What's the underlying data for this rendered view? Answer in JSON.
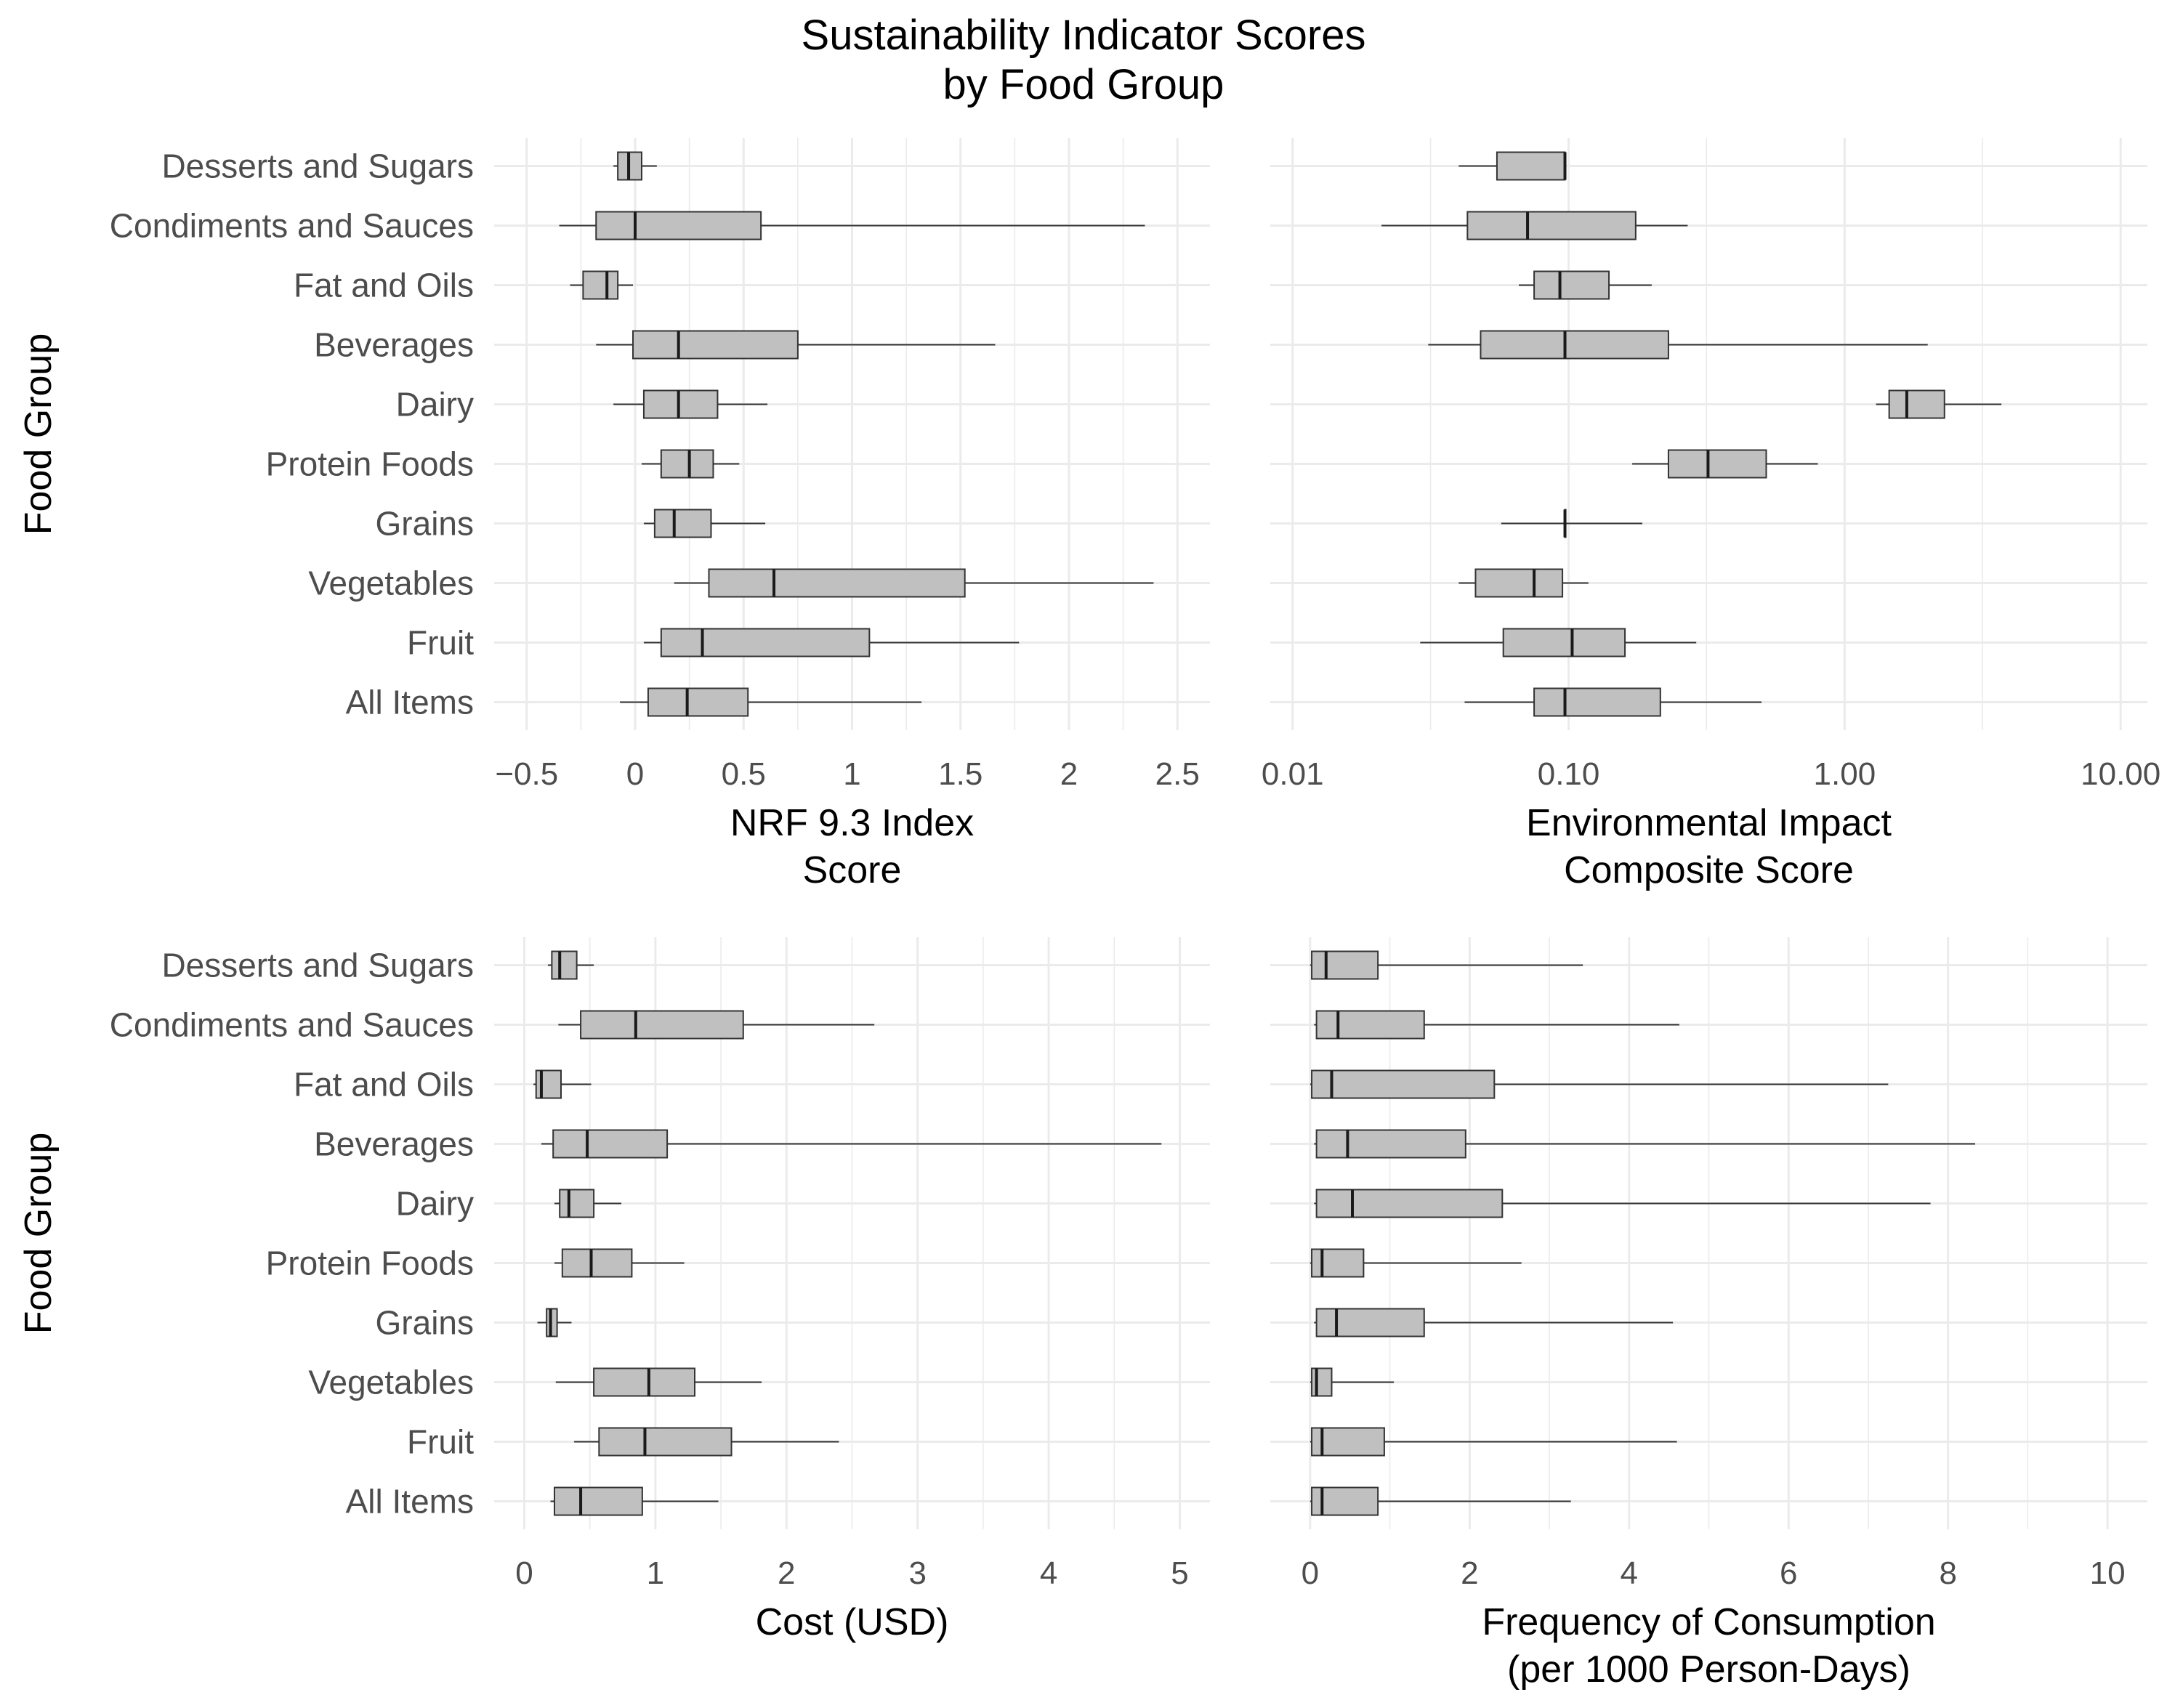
{
  "title": [
    "Sustainability Indicator Scores",
    "by Food Group"
  ],
  "y_axis_title": "Food Group",
  "categories": [
    "Desserts and Sugars",
    "Condiments and Sauces",
    "Fat and Oils",
    "Beverages",
    "Dairy",
    "Protein Foods",
    "Grains",
    "Vegetables",
    "Fruit",
    "All Items"
  ],
  "colors": {
    "box_fill": "#c0c0c0",
    "box_stroke": "#333333",
    "grid": "#ebebeb",
    "tick_text": "#4d4d4d"
  },
  "chart_data": [
    {
      "type": "boxplot",
      "orientation": "horizontal",
      "xlabel": [
        "NRF 9.3 Index",
        "Score"
      ],
      "ylabel": "Food Group",
      "scale": "linear",
      "xlim": [
        -0.65,
        2.65
      ],
      "major_ticks": [
        -0.5,
        0,
        0.5,
        1,
        1.5,
        2,
        2.5
      ],
      "tick_labels": [
        "−0.5",
        "0",
        "0.5",
        "1",
        "1.5",
        "2",
        "2.5"
      ],
      "minor_ticks": [
        -0.25,
        0.25,
        0.75,
        1.25,
        1.75,
        2.25
      ],
      "boxes": [
        {
          "category": "Desserts and Sugars",
          "min": -0.1,
          "q1": -0.08,
          "median": -0.03,
          "q3": 0.03,
          "max": 0.1
        },
        {
          "category": "Condiments and Sauces",
          "min": -0.35,
          "q1": -0.18,
          "median": 0.0,
          "q3": 0.58,
          "max": 2.35
        },
        {
          "category": "Fat and Oils",
          "min": -0.3,
          "q1": -0.24,
          "median": -0.13,
          "q3": -0.08,
          "max": -0.01
        },
        {
          "category": "Beverages",
          "min": -0.18,
          "q1": -0.01,
          "median": 0.2,
          "q3": 0.75,
          "max": 1.66
        },
        {
          "category": "Dairy",
          "min": -0.1,
          "q1": 0.04,
          "median": 0.2,
          "q3": 0.38,
          "max": 0.61
        },
        {
          "category": "Protein Foods",
          "min": 0.03,
          "q1": 0.12,
          "median": 0.25,
          "q3": 0.36,
          "max": 0.48
        },
        {
          "category": "Grains",
          "min": 0.04,
          "q1": 0.09,
          "median": 0.18,
          "q3": 0.35,
          "max": 0.6
        },
        {
          "category": "Vegetables",
          "min": 0.18,
          "q1": 0.34,
          "median": 0.64,
          "q3": 1.52,
          "max": 2.39
        },
        {
          "category": "Fruit",
          "min": 0.04,
          "q1": 0.12,
          "median": 0.31,
          "q3": 1.08,
          "max": 1.77
        },
        {
          "category": "All Items",
          "min": -0.07,
          "q1": 0.06,
          "median": 0.24,
          "q3": 0.52,
          "max": 1.32
        }
      ]
    },
    {
      "type": "boxplot",
      "orientation": "horizontal",
      "xlabel": [
        "Environmental Impact",
        "Composite Score"
      ],
      "ylabel": "Food Group",
      "scale": "log10",
      "xlim": [
        0.0083,
        12.5
      ],
      "major_ticks": [
        0.01,
        0.1,
        1,
        10
      ],
      "tick_labels": [
        "0.01",
        "0.10",
        "1.00",
        "10.00"
      ],
      "minor_ticks": [
        0.0316,
        0.316,
        3.16
      ],
      "boxes": [
        {
          "category": "Desserts and Sugars",
          "min": 0.04,
          "q1": 0.055,
          "median": 0.097,
          "q3": 0.097,
          "max": 0.097
        },
        {
          "category": "Condiments and Sauces",
          "min": 0.021,
          "q1": 0.043,
          "median": 0.071,
          "q3": 0.175,
          "max": 0.27
        },
        {
          "category": "Fat and Oils",
          "min": 0.066,
          "q1": 0.075,
          "median": 0.093,
          "q3": 0.14,
          "max": 0.2
        },
        {
          "category": "Beverages",
          "min": 0.031,
          "q1": 0.048,
          "median": 0.097,
          "q3": 0.23,
          "max": 2.0
        },
        {
          "category": "Dairy",
          "min": 1.3,
          "q1": 1.45,
          "median": 1.68,
          "q3": 2.3,
          "max": 3.7
        },
        {
          "category": "Protein Foods",
          "min": 0.17,
          "q1": 0.23,
          "median": 0.32,
          "q3": 0.52,
          "max": 0.8
        },
        {
          "category": "Grains",
          "min": 0.057,
          "q1": 0.097,
          "median": 0.097,
          "q3": 0.097,
          "max": 0.185
        },
        {
          "category": "Vegetables",
          "min": 0.04,
          "q1": 0.046,
          "median": 0.075,
          "q3": 0.095,
          "max": 0.118
        },
        {
          "category": "Fruit",
          "min": 0.029,
          "q1": 0.058,
          "median": 0.103,
          "q3": 0.16,
          "max": 0.29
        },
        {
          "category": "All Items",
          "min": 0.042,
          "q1": 0.075,
          "median": 0.097,
          "q3": 0.215,
          "max": 0.5
        }
      ]
    },
    {
      "type": "boxplot",
      "orientation": "horizontal",
      "xlabel": [
        "Cost (USD)"
      ],
      "ylabel": "Food Group",
      "scale": "linear",
      "xlim": [
        -0.23,
        5.23
      ],
      "major_ticks": [
        0,
        1,
        2,
        3,
        4,
        5
      ],
      "tick_labels": [
        "0",
        "1",
        "2",
        "3",
        "4",
        "5"
      ],
      "minor_ticks": [
        0.5,
        1.5,
        2.5,
        3.5,
        4.5
      ],
      "boxes": [
        {
          "category": "Desserts and Sugars",
          "min": 0.18,
          "q1": 0.21,
          "median": 0.27,
          "q3": 0.4,
          "max": 0.53
        },
        {
          "category": "Condiments and Sauces",
          "min": 0.26,
          "q1": 0.43,
          "median": 0.85,
          "q3": 1.67,
          "max": 2.67
        },
        {
          "category": "Fat and Oils",
          "min": 0.07,
          "q1": 0.09,
          "median": 0.13,
          "q3": 0.28,
          "max": 0.51
        },
        {
          "category": "Beverages",
          "min": 0.13,
          "q1": 0.22,
          "median": 0.48,
          "q3": 1.09,
          "max": 4.86
        },
        {
          "category": "Dairy",
          "min": 0.23,
          "q1": 0.27,
          "median": 0.34,
          "q3": 0.53,
          "max": 0.74
        },
        {
          "category": "Protein Foods",
          "min": 0.23,
          "q1": 0.29,
          "median": 0.51,
          "q3": 0.82,
          "max": 1.22
        },
        {
          "category": "Grains",
          "min": 0.1,
          "q1": 0.17,
          "median": 0.2,
          "q3": 0.25,
          "max": 0.36
        },
        {
          "category": "Vegetables",
          "min": 0.24,
          "q1": 0.53,
          "median": 0.95,
          "q3": 1.3,
          "max": 1.81
        },
        {
          "category": "Fruit",
          "min": 0.38,
          "q1": 0.57,
          "median": 0.92,
          "q3": 1.58,
          "max": 2.4
        },
        {
          "category": "All Items",
          "min": 0.2,
          "q1": 0.23,
          "median": 0.43,
          "q3": 0.9,
          "max": 1.48
        }
      ]
    },
    {
      "type": "boxplot",
      "orientation": "horizontal",
      "xlabel": [
        "Frequency of Consumption",
        "(per 1000 Person-Days)"
      ],
      "ylabel": "Food Group",
      "scale": "linear",
      "xlim": [
        -0.5,
        10.5
      ],
      "major_ticks": [
        0,
        2,
        4,
        6,
        8,
        10
      ],
      "tick_labels": [
        "0",
        "2",
        "4",
        "6",
        "8",
        "10"
      ],
      "minor_ticks": [
        1,
        3,
        5,
        7,
        9
      ],
      "boxes": [
        {
          "category": "Desserts and Sugars",
          "min": 0.0,
          "q1": 0.02,
          "median": 0.2,
          "q3": 0.85,
          "max": 3.42
        },
        {
          "category": "Condiments and Sauces",
          "min": 0.05,
          "q1": 0.08,
          "median": 0.35,
          "q3": 1.43,
          "max": 4.63
        },
        {
          "category": "Fat and Oils",
          "min": 0.0,
          "q1": 0.02,
          "median": 0.27,
          "q3": 2.31,
          "max": 7.25
        },
        {
          "category": "Beverages",
          "min": 0.05,
          "q1": 0.08,
          "median": 0.47,
          "q3": 1.95,
          "max": 8.34
        },
        {
          "category": "Dairy",
          "min": 0.05,
          "q1": 0.08,
          "median": 0.53,
          "q3": 2.41,
          "max": 7.78
        },
        {
          "category": "Protein Foods",
          "min": 0.0,
          "q1": 0.02,
          "median": 0.15,
          "q3": 0.67,
          "max": 2.65
        },
        {
          "category": "Grains",
          "min": 0.05,
          "q1": 0.08,
          "median": 0.33,
          "q3": 1.43,
          "max": 4.55
        },
        {
          "category": "Vegetables",
          "min": 0.0,
          "q1": 0.02,
          "median": 0.08,
          "q3": 0.27,
          "max": 1.05
        },
        {
          "category": "Fruit",
          "min": 0.0,
          "q1": 0.02,
          "median": 0.15,
          "q3": 0.93,
          "max": 4.6
        },
        {
          "category": "All Items",
          "min": 0.0,
          "q1": 0.02,
          "median": 0.15,
          "q3": 0.85,
          "max": 3.27
        }
      ]
    }
  ]
}
